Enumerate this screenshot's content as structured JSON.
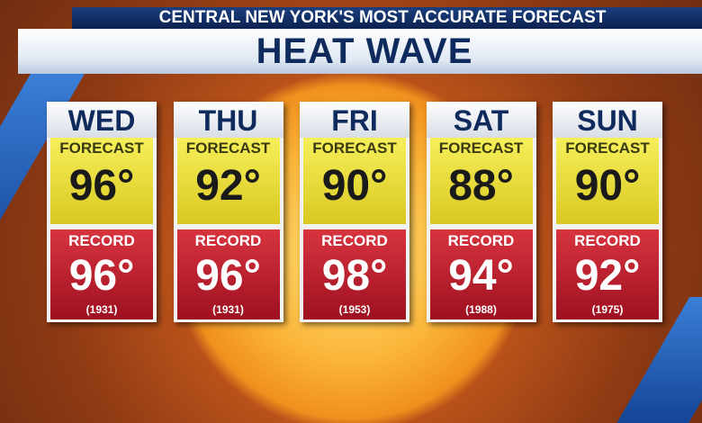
{
  "header": {
    "banner": "CENTRAL NEW YORK'S MOST ACCURATE FORECAST",
    "title": "HEAT WAVE"
  },
  "days": [
    {
      "day": "WED",
      "forecast_label": "FORECAST",
      "forecast": "96°",
      "record_label": "RECORD",
      "record": "96°",
      "year": "(1931)"
    },
    {
      "day": "THU",
      "forecast_label": "FORECAST",
      "forecast": "92°",
      "record_label": "RECORD",
      "record": "96°",
      "year": "(1931)"
    },
    {
      "day": "FRI",
      "forecast_label": "FORECAST",
      "forecast": "90°",
      "record_label": "RECORD",
      "record": "98°",
      "year": "(1953)"
    },
    {
      "day": "SAT",
      "forecast_label": "FORECAST",
      "forecast": "88°",
      "record_label": "RECORD",
      "record": "94°",
      "year": "(1988)"
    },
    {
      "day": "SUN",
      "forecast_label": "FORECAST",
      "forecast": "90°",
      "record_label": "RECORD",
      "record": "92°",
      "year": "(1975)"
    }
  ]
}
